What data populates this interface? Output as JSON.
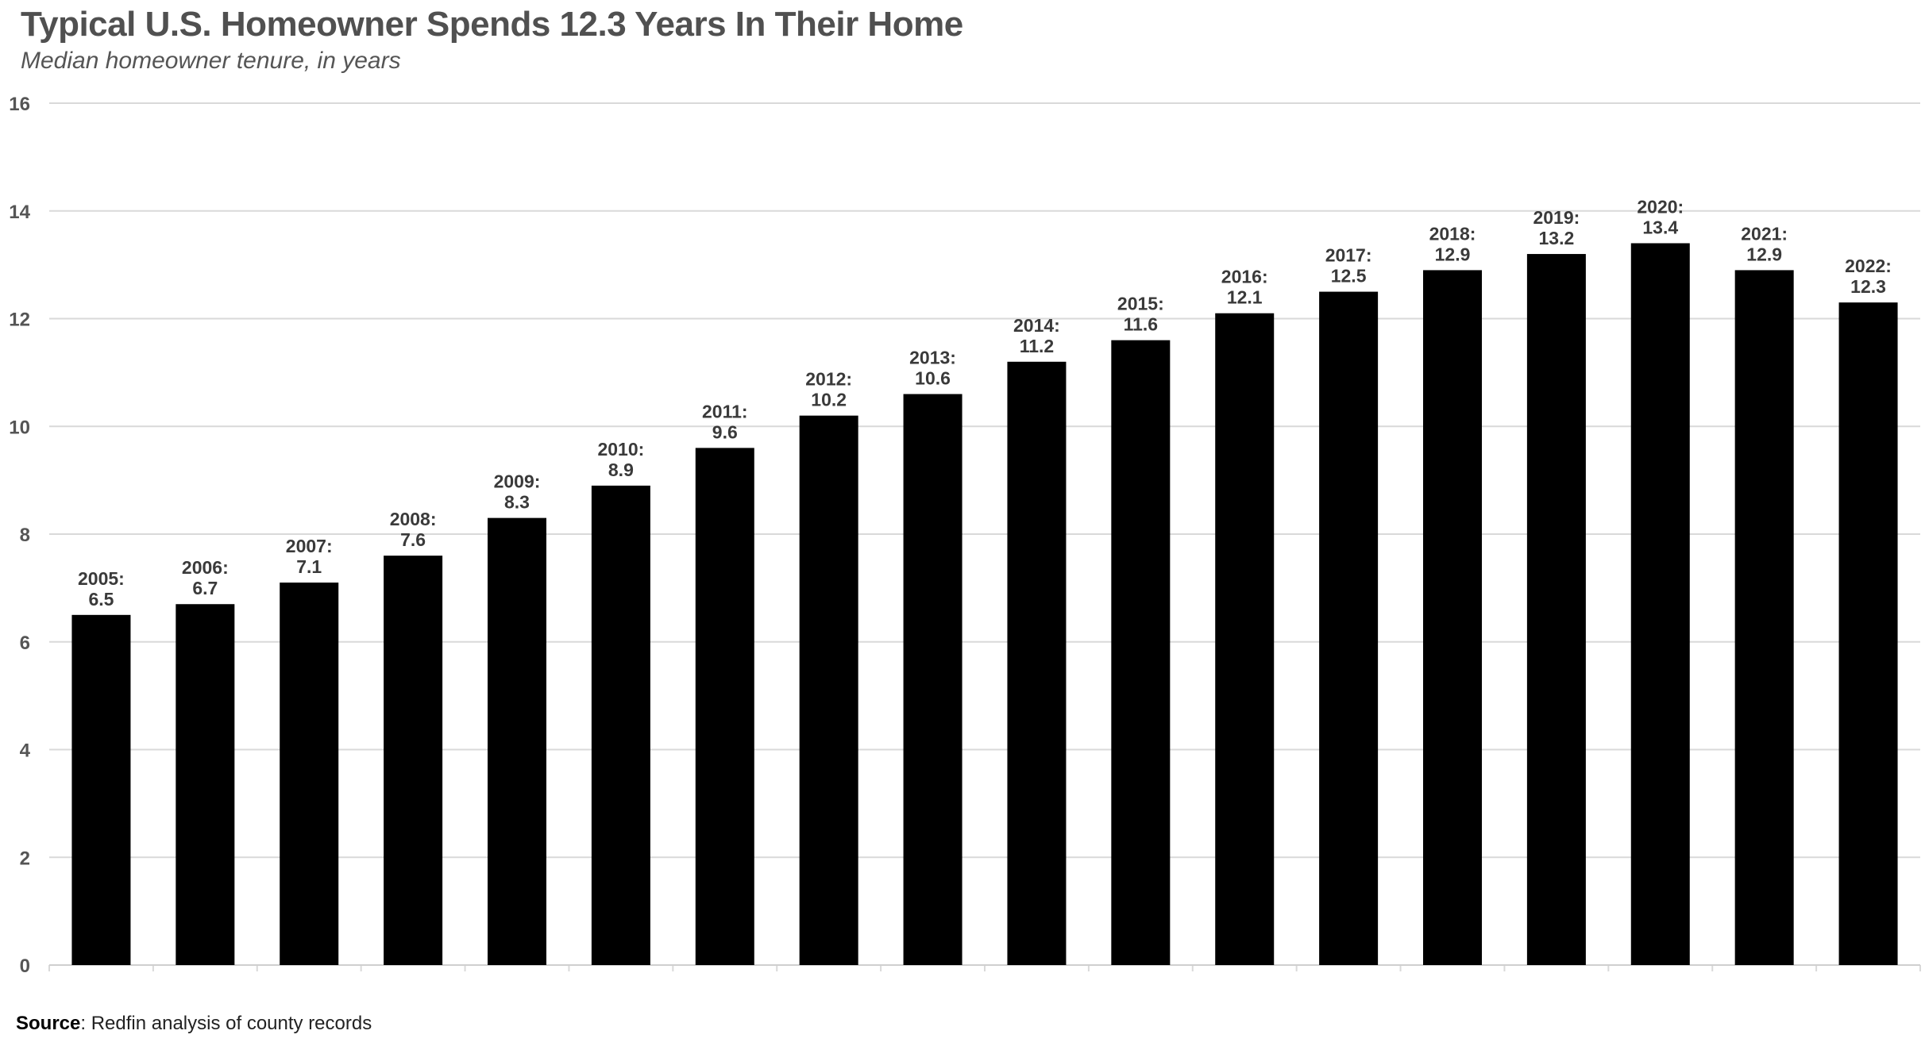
{
  "chart_data": {
    "type": "bar",
    "title": "Typical U.S. Homeowner Spends 12.3 Years In Their Home",
    "subtitle": "Median homeowner tenure, in years",
    "categories": [
      "2005",
      "2006",
      "2007",
      "2008",
      "2009",
      "2010",
      "2011",
      "2012",
      "2013",
      "2014",
      "2015",
      "2016",
      "2017",
      "2018",
      "2019",
      "2020",
      "2021",
      "2022"
    ],
    "values": [
      6.5,
      6.7,
      7.1,
      7.6,
      8.3,
      8.9,
      9.6,
      10.2,
      10.6,
      11.2,
      11.6,
      12.1,
      12.5,
      12.9,
      13.2,
      13.4,
      12.9,
      12.3
    ],
    "data_labels": [
      "2005:",
      "2006:",
      "2007:",
      "2008:",
      "2009:",
      "2010:",
      "2011:",
      "2012:",
      "2013:",
      "2014:",
      "2015:",
      "2016:",
      "2017:",
      "2018:",
      "2019:",
      "2020:",
      "2021:",
      "2022:"
    ],
    "value_labels": [
      "6.5",
      "6.7",
      "7.1",
      "7.6",
      "8.3",
      "8.9",
      "9.6",
      "10.2",
      "10.6",
      "11.2",
      "11.6",
      "12.1",
      "12.5",
      "12.9",
      "13.2",
      "13.4",
      "12.9",
      "12.3"
    ],
    "xlabel": "",
    "ylabel": "",
    "ylim": [
      0,
      16
    ],
    "yticks": [
      "0",
      "2",
      "4",
      "6",
      "8",
      "10",
      "12",
      "14",
      "16"
    ],
    "grid": true,
    "legend": "none",
    "bar_color": "#000000",
    "grid_color": "#d9d9d9",
    "label_color": "#3a3a3a"
  },
  "source": {
    "label": "Source",
    "text": ": Redfin analysis of county records"
  }
}
